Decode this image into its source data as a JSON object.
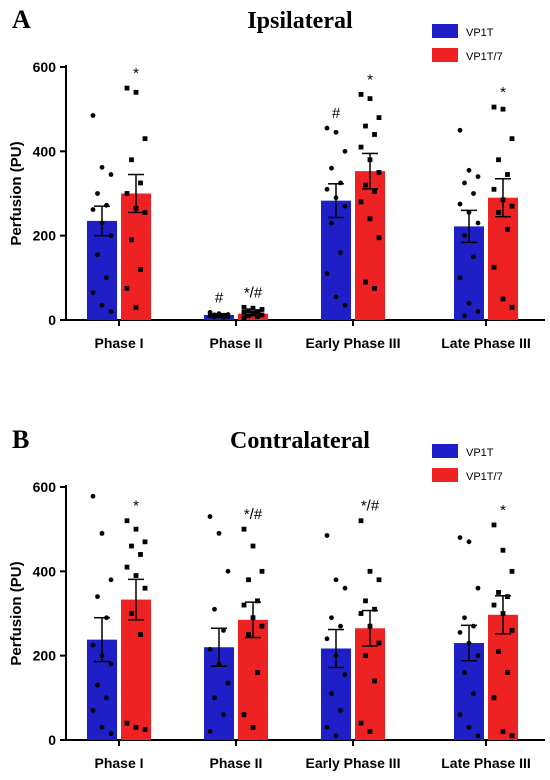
{
  "chart_data": [
    {
      "type": "bar",
      "panel_label": "A",
      "title": "Ipsilateral",
      "ylabel": "Perfusion (PU)",
      "xlabel": "",
      "ylim": [
        0,
        600
      ],
      "yticks": [
        0,
        200,
        400,
        600
      ],
      "categories": [
        "Phase I",
        "Phase II",
        "Early Phase III",
        "Late Phase III"
      ],
      "legend_position": "top-right",
      "series": [
        {
          "name": "VP1T",
          "color": "#1f1fc8",
          "values": [
            235,
            12,
            283,
            222
          ],
          "sem": [
            35,
            3,
            40,
            38
          ],
          "annotations": [
            "",
            "#",
            "#",
            ""
          ],
          "points": [
            [
              485,
              362,
              345,
              300,
              272,
              262,
              230,
              200,
              155,
              100,
              65,
              35,
              20
            ],
            [
              18,
              15,
              13,
              12,
              11,
              10,
              9,
              8,
              7,
              6
            ],
            [
              455,
              445,
              400,
              360,
              325,
              310,
              290,
              270,
              230,
              160,
              110,
              55,
              35
            ],
            [
              450,
              355,
              340,
              325,
              300,
              275,
              255,
              230,
              200,
              150,
              100,
              40,
              20,
              10
            ]
          ]
        },
        {
          "name": "VP1T/7",
          "color": "#ee2222",
          "values": [
            300,
            15,
            353,
            290
          ],
          "sem": [
            45,
            5,
            42,
            45
          ],
          "annotations": [
            "*",
            "*/#",
            "*",
            "*"
          ],
          "points": [
            [
              550,
              540,
              430,
              380,
              325,
              300,
              265,
              255,
              190,
              120,
              75,
              30
            ],
            [
              30,
              28,
              25,
              22,
              20,
              18,
              15,
              12,
              10,
              8,
              5
            ],
            [
              535,
              525,
              480,
              460,
              440,
              410,
              380,
              350,
              320,
              305,
              280,
              240,
              195,
              90,
              75
            ],
            [
              505,
              500,
              430,
              380,
              345,
              310,
              285,
              270,
              255,
              215,
              125,
              50,
              30
            ]
          ]
        }
      ]
    },
    {
      "type": "bar",
      "panel_label": "B",
      "title": "Contralateral",
      "ylabel": "Perfusion (PU)",
      "xlabel": "",
      "ylim": [
        0,
        600
      ],
      "yticks": [
        0,
        200,
        400,
        600
      ],
      "categories": [
        "Phase I",
        "Phase II",
        "Early Phase III",
        "Late Phase III"
      ],
      "legend_position": "top-right",
      "series": [
        {
          "name": "VP1T",
          "color": "#1f1fc8",
          "values": [
            238,
            220,
            217,
            230
          ],
          "sem": [
            52,
            45,
            45,
            42
          ],
          "annotations": [
            "",
            "",
            "",
            ""
          ],
          "points": [
            [
              578,
              490,
              380,
              340,
              290,
              225,
              200,
              180,
              130,
              100,
              70,
              30,
              15
            ],
            [
              530,
              490,
              400,
              310,
              260,
              215,
              180,
              135,
              100,
              60,
              20
            ],
            [
              485,
              380,
              360,
              290,
              270,
              240,
              200,
              155,
              110,
              70,
              30,
              10
            ],
            [
              480,
              470,
              360,
              290,
              270,
              255,
              230,
              200,
              160,
              110,
              60,
              30,
              10
            ]
          ]
        },
        {
          "name": "VP1T/7",
          "color": "#ee2222",
          "values": [
            333,
            285,
            265,
            297
          ],
          "sem": [
            48,
            42,
            42,
            45
          ],
          "annotations": [
            "*",
            "*/#",
            "*/#",
            "*"
          ],
          "points": [
            [
              520,
              500,
              470,
              460,
              440,
              410,
              390,
              360,
              300,
              250,
              40,
              30,
              25
            ],
            [
              500,
              460,
              400,
              380,
              330,
              320,
              290,
              270,
              250,
              160,
              60,
              30
            ],
            [
              520,
              400,
              380,
              330,
              310,
              300,
              270,
              230,
              200,
              140,
              40,
              20
            ],
            [
              510,
              450,
              400,
              350,
              340,
              320,
              300,
              260,
              210,
              160,
              100,
              20,
              10
            ]
          ]
        }
      ]
    }
  ]
}
